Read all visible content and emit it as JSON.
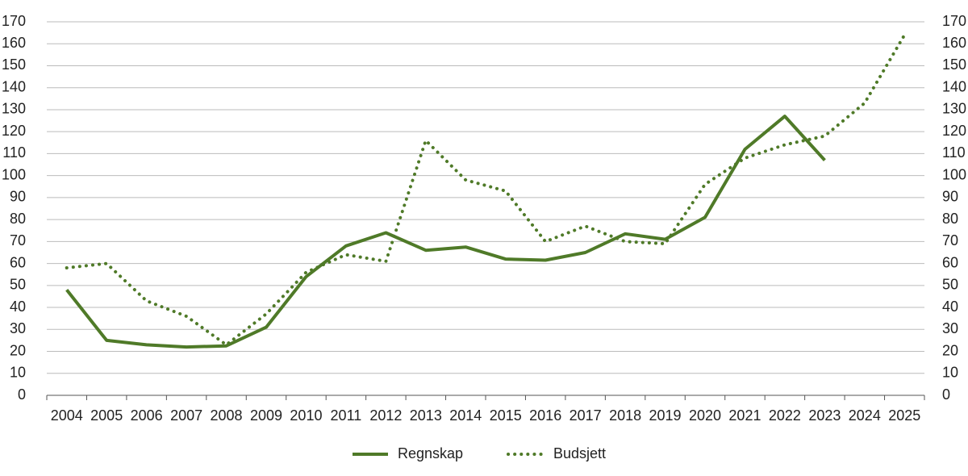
{
  "chart_data": {
    "type": "line",
    "categories": [
      "2004",
      "2005",
      "2006",
      "2007",
      "2008",
      "2009",
      "2010",
      "2011",
      "2012",
      "2013",
      "2014",
      "2015",
      "2016",
      "2017",
      "2018",
      "2019",
      "2020",
      "2021",
      "2022",
      "2023",
      "2024",
      "2025"
    ],
    "series": [
      {
        "name": "Regnskap",
        "color": "#4f7a28",
        "style": "solid",
        "values": [
          48,
          25,
          23,
          22,
          22.5,
          31,
          54,
          68,
          74,
          66,
          67.5,
          62,
          61.5,
          65,
          73.5,
          71,
          81,
          112,
          127,
          107,
          null,
          null
        ]
      },
      {
        "name": "Budsjett",
        "color": "#4f7a28",
        "style": "dotted",
        "values": [
          58,
          60,
          43,
          36,
          23,
          37,
          56,
          64,
          61,
          116,
          98,
          93,
          70,
          77,
          70,
          69,
          96,
          108,
          114,
          118,
          133,
          164
        ]
      }
    ],
    "ylim": [
      0,
      170
    ],
    "yticks": [
      0,
      10,
      20,
      30,
      40,
      50,
      60,
      70,
      80,
      90,
      100,
      110,
      120,
      130,
      140,
      150,
      160,
      170
    ],
    "y2lim": [
      0,
      170
    ],
    "y2ticks": [
      0,
      10,
      20,
      30,
      40,
      50,
      60,
      70,
      80,
      90,
      100,
      110,
      120,
      130,
      140,
      150,
      160,
      170
    ],
    "grid": true,
    "legend": "bottom"
  }
}
